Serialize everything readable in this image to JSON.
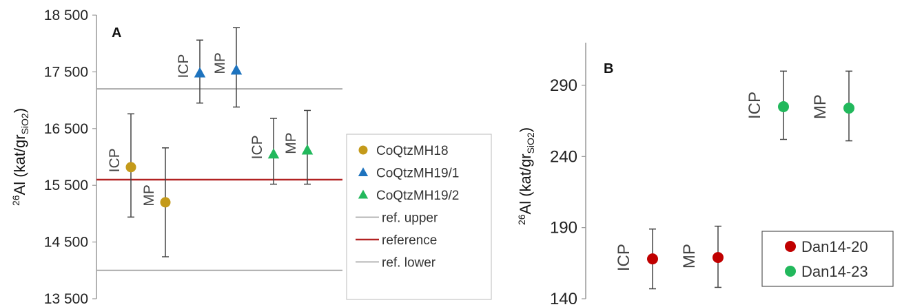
{
  "chart_data": [
    {
      "type": "scatter",
      "panel_label": "A",
      "ylabel": {
        "sup": "26",
        "main": "Al (kat/gr",
        "sub": "SiO2",
        "close": ")"
      },
      "ylim": [
        13500,
        18500
      ],
      "yticks": [
        13500,
        14500,
        15500,
        16500,
        17500,
        18500
      ],
      "ytick_labels": [
        "13 500",
        "14 500",
        "15 500",
        "16 500",
        "17 500",
        "18 500"
      ],
      "series": [
        {
          "name": "CoQtzMH18",
          "marker": "circle",
          "color": "#C49A1A",
          "points": [
            {
              "x": 1,
              "y": 15820,
              "err_low": 14940,
              "err_high": 16760,
              "label": "ICP"
            },
            {
              "x": 2,
              "y": 15200,
              "err_low": 14240,
              "err_high": 16160,
              "label": "MP"
            }
          ]
        },
        {
          "name": "CoQtzMH19/1",
          "marker": "triangle",
          "color": "#1E73BE",
          "points": [
            {
              "x": 3,
              "y": 17480,
              "err_low": 16950,
              "err_high": 18060,
              "label": "ICP"
            },
            {
              "x": 4,
              "y": 17530,
              "err_low": 16880,
              "err_high": 18280,
              "label": "MP"
            }
          ]
        },
        {
          "name": "CoQtzMH19/2",
          "marker": "triangle",
          "color": "#22B85C",
          "points": [
            {
              "x": 5,
              "y": 16050,
              "err_low": 15520,
              "err_high": 16680,
              "label": "ICP"
            },
            {
              "x": 6,
              "y": 16120,
              "err_low": 15520,
              "err_high": 16820,
              "label": "MP"
            }
          ]
        }
      ],
      "hlines": [
        {
          "name": "ref. upper",
          "y": 17200,
          "color": "#AAAAAA"
        },
        {
          "name": "reference",
          "y": 15600,
          "color": "#B22222"
        },
        {
          "name": "ref. lower",
          "y": 14000,
          "color": "#AAAAAA"
        }
      ],
      "legend_position": "right"
    },
    {
      "type": "scatter",
      "panel_label": "B",
      "ylabel": {
        "sup": "26",
        "main": "Al (kat/gr",
        "sub": "SiO2",
        "close": ")"
      },
      "ylim": [
        140,
        320
      ],
      "yticks": [
        140,
        190,
        240,
        290
      ],
      "ytick_labels": [
        "140",
        "190",
        "240",
        "290"
      ],
      "series": [
        {
          "name": "Dan14-20",
          "marker": "circle",
          "color": "#C00000",
          "points": [
            {
              "x": 1,
              "y": 168,
              "err_low": 147,
              "err_high": 189,
              "label": "ICP"
            },
            {
              "x": 2,
              "y": 169,
              "err_low": 148,
              "err_high": 191,
              "label": "MP"
            }
          ]
        },
        {
          "name": "Dan14-23",
          "marker": "circle",
          "color": "#22B85C",
          "points": [
            {
              "x": 3,
              "y": 275,
              "err_low": 252,
              "err_high": 300,
              "label": "ICP"
            },
            {
              "x": 4,
              "y": 274,
              "err_low": 251,
              "err_high": 300,
              "label": "MP"
            }
          ]
        }
      ],
      "legend_position": "bottom-right"
    }
  ]
}
